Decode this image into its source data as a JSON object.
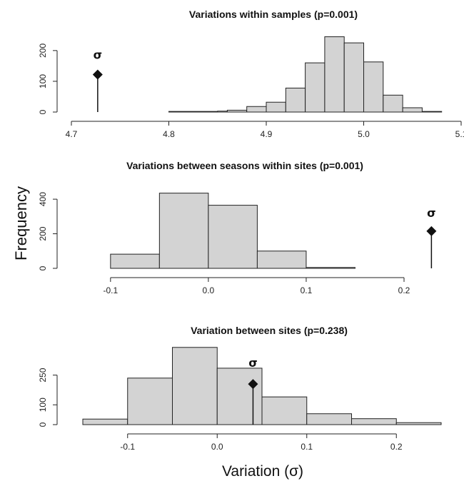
{
  "figure": {
    "ylabel": "Frequency",
    "xlabel": "Variation (σ)",
    "marker_label": "σ"
  },
  "chart_data": [
    {
      "type": "bar",
      "title": "Variations within samples (p=0.001)",
      "bin_edges": [
        4.8,
        4.85,
        4.86,
        4.88,
        4.9,
        4.92,
        4.94,
        4.96,
        4.98,
        5.0,
        5.02,
        5.04,
        5.06,
        5.08
      ],
      "values": [
        2,
        3,
        6,
        18,
        32,
        78,
        160,
        245,
        225,
        163,
        55,
        14,
        2
      ],
      "xlim": [
        4.7,
        5.1
      ],
      "ylim": [
        0,
        260
      ],
      "xticks": [
        4.7,
        4.8,
        4.9,
        5.0,
        5.1
      ],
      "xtick_labels": [
        "4.7",
        "4.8",
        "4.9",
        "5.0",
        "5.1"
      ],
      "yticks": [
        0,
        100,
        200
      ],
      "ytick_labels": [
        "0",
        "100",
        "200"
      ],
      "observed": {
        "x": 4.727,
        "y": 122
      }
    },
    {
      "type": "bar",
      "title": "Variations between seasons within sites (p=0.001)",
      "bin_edges": [
        -0.1,
        -0.05,
        0.0,
        0.05,
        0.1,
        0.15
      ],
      "values": [
        82,
        435,
        365,
        100,
        5
      ],
      "xlim": [
        -0.14,
        0.2
      ],
      "ylim": [
        0,
        450
      ],
      "xticks": [
        -0.1,
        0.0,
        0.1,
        0.2
      ],
      "xtick_labels": [
        "-0.1",
        "0.0",
        "0.1",
        "0.2"
      ],
      "yticks": [
        0,
        200,
        400
      ],
      "ytick_labels": [
        "0",
        "200",
        "400"
      ],
      "observed": {
        "x": 0.228,
        "y": 215
      }
    },
    {
      "type": "bar",
      "title": "Variation between sites (p=0.238)",
      "bin_edges": [
        -0.15,
        -0.1,
        -0.05,
        0.0,
        0.05,
        0.1,
        0.15,
        0.2,
        0.25
      ],
      "values": [
        28,
        235,
        390,
        285,
        140,
        55,
        30,
        10
      ],
      "xlim": [
        -0.15,
        0.25
      ],
      "ylim": [
        0,
        400
      ],
      "xticks": [
        -0.1,
        0.0,
        0.1,
        0.2
      ],
      "xtick_labels": [
        "-0.1",
        "0.0",
        "0.1",
        "0.2"
      ],
      "yticks": [
        0,
        100,
        250
      ],
      "ytick_labels": [
        "0",
        "100",
        "250"
      ],
      "observed": {
        "x": 0.04,
        "y": 205
      }
    }
  ]
}
